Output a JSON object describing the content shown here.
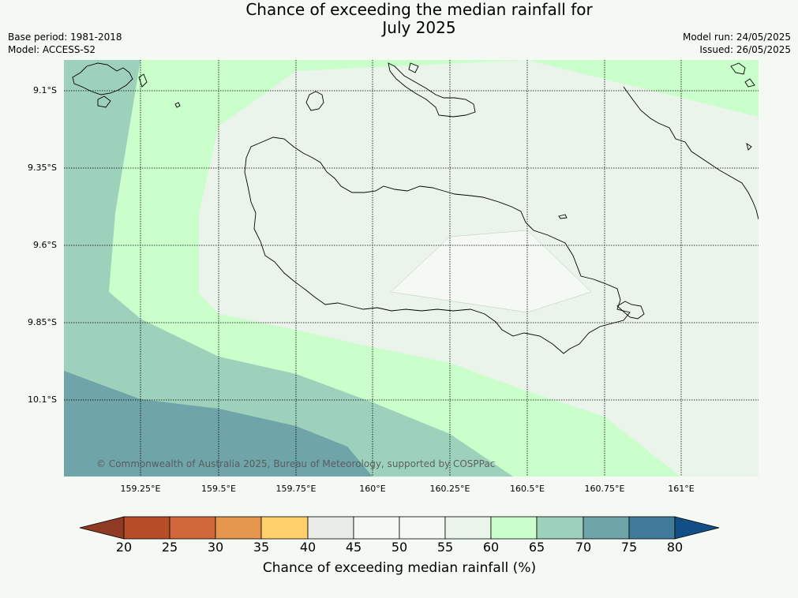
{
  "title": {
    "line1": "Chance of exceeding the median rainfall for",
    "line2": "July 2025"
  },
  "meta": {
    "base_period": "Base period: 1981-2018",
    "model": "Model: ACCESS-S2",
    "model_run": "Model run: 24/05/2025",
    "issued": "Issued: 26/05/2025"
  },
  "axes": {
    "latitude_labels": [
      "9.1°S",
      "9.35°S",
      "9.6°S",
      "9.85°S",
      "10.1°S"
    ],
    "longitude_labels": [
      "159.25°E",
      "159.5°E",
      "159.75°E",
      "160°E",
      "160.25°E",
      "160.5°E",
      "160.75°E",
      "161°E"
    ]
  },
  "copyright": "© Commonwealth of Australia 2025, Bureau of Meteorology, supported by COSPPac",
  "colorbar": {
    "title": "Chance of exceeding median rainfall (%)",
    "ticks": [
      "20",
      "25",
      "30",
      "35",
      "40",
      "45",
      "50",
      "55",
      "60",
      "65",
      "70",
      "75",
      "80"
    ],
    "colors": [
      "#8e3a24",
      "#b54e28",
      "#d0673a",
      "#e4964d",
      "#fecf6a",
      "#e9ece6",
      "#f4f9f3",
      "#f4f9f3",
      "#eaf4ea",
      "#cafecb",
      "#9dd1bb",
      "#6fa4a8",
      "#417b9a",
      "#134f87"
    ]
  },
  "map": {
    "levels": {
      "50-55": "#f4f9f3",
      "55-60": "#eaf4ea",
      "60-65": "#cafecb",
      "65-70": "#9dd1bb",
      "70-75": "#6fa4a8"
    }
  }
}
